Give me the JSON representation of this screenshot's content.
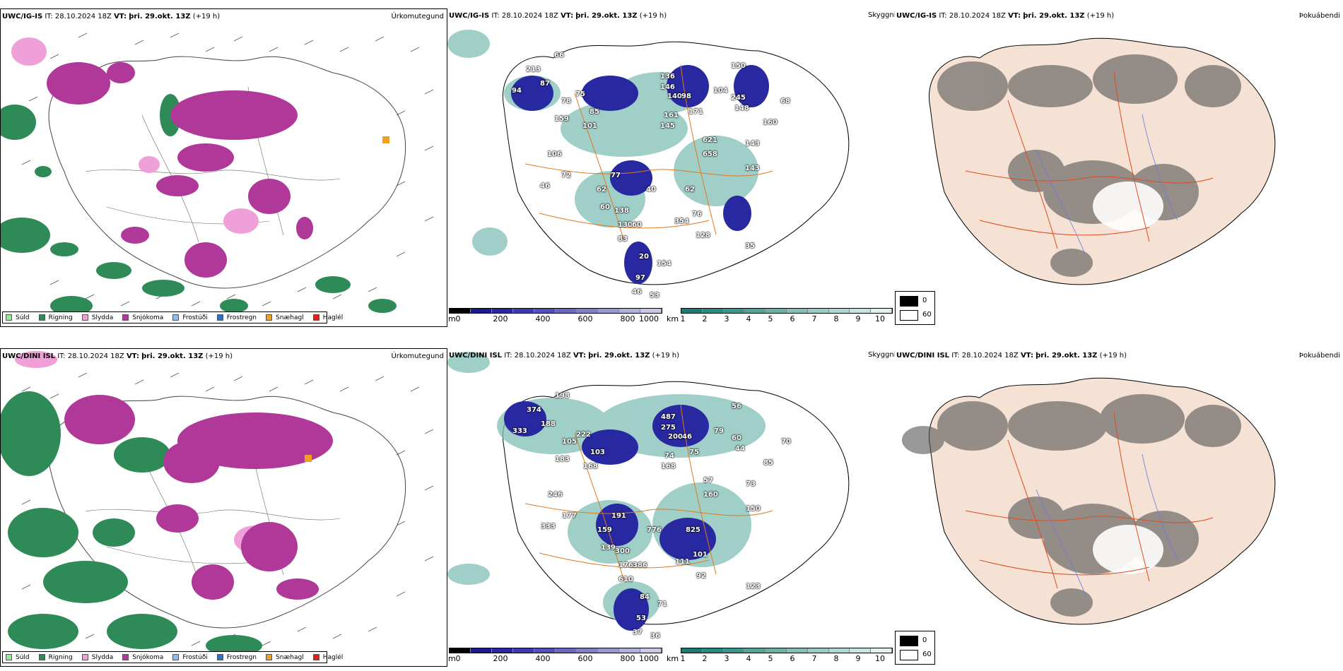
{
  "panels": [
    {
      "row": "top",
      "model": "UWC/IG-IS",
      "it_label": "IT:",
      "it_value": "28.10.2024 18Z",
      "vt_label": "VT:",
      "vt_value": "þri. 29.okt. 13Z",
      "lead": "(+19 h)",
      "precip_title": "Úrkomutegund",
      "sky_title": "Skyggni",
      "cloud_title": "Þokuábendi"
    },
    {
      "row": "bottom",
      "model": "UWC/DINI ISL",
      "it_label": "IT:",
      "it_value": "28.10.2024 18Z",
      "vt_label": "VT:",
      "vt_value": "þri. 29.okt. 13Z",
      "lead": "(+19 h)",
      "precip_title": "Úrkomutegund",
      "sky_title": "Skyggni",
      "cloud_title": "Þokuábendi"
    }
  ],
  "precip_legend": [
    {
      "label": "Súld",
      "color": "#90ee90"
    },
    {
      "label": "Rigning",
      "color": "#2e8b57"
    },
    {
      "label": "Slydda",
      "color": "#f0a0d8"
    },
    {
      "label": "Snjókoma",
      "color": "#b03898"
    },
    {
      "label": "Frostúði",
      "color": "#8cbcf0"
    },
    {
      "label": "Frostregn",
      "color": "#3070c0"
    },
    {
      "label": "Snæhagl",
      "color": "#f0a020"
    },
    {
      "label": "Haglél",
      "color": "#e02020"
    }
  ],
  "height_scale": {
    "unit": "m",
    "ticks": [
      "0",
      "200",
      "400",
      "600",
      "800",
      "1000"
    ],
    "colors": [
      "#000000",
      "#1a1a8a",
      "#2828a0",
      "#3c3cb0",
      "#5050b8",
      "#6868c0",
      "#8080c8",
      "#9898d0",
      "#b0b0d8",
      "#c8c8e4"
    ]
  },
  "vis_scale": {
    "unit": "km",
    "ticks": [
      "1",
      "2",
      "3",
      "4",
      "5",
      "6",
      "7",
      "8",
      "9",
      "10"
    ],
    "colors": [
      "#1e7a72",
      "#2a8a80",
      "#3a968c",
      "#50a49a",
      "#68b2a8",
      "#80c0b6",
      "#98ccc4",
      "#b0d8d2",
      "#c8e4e0",
      "#e0f0ee"
    ]
  },
  "cloud_legend": {
    "labels": [
      "0",
      "60"
    ],
    "colors": [
      "#000000",
      "#ffffff"
    ]
  },
  "ceiling_labels_top": [
    "213",
    "66",
    "94",
    "87",
    "78",
    "75",
    "159",
    "85",
    "101",
    "106",
    "72",
    "46",
    "77",
    "62",
    "60",
    "138",
    "130",
    "40",
    "60",
    "83",
    "62",
    "354",
    "76",
    "128",
    "136",
    "146",
    "140",
    "98",
    "161",
    "145",
    "171",
    "104",
    "150",
    "245",
    "148",
    "68",
    "160",
    "143",
    "621",
    "658",
    "143",
    "35",
    "20",
    "154",
    "97",
    "46",
    "53"
  ],
  "ceiling_labels_bottom": [
    "374",
    "198",
    "333",
    "188",
    "105",
    "222",
    "183",
    "103",
    "168",
    "246",
    "177",
    "333",
    "191",
    "159",
    "139",
    "300",
    "176",
    "776",
    "386",
    "610",
    "825",
    "111",
    "101",
    "92",
    "487",
    "275",
    "200",
    "46",
    "74",
    "168",
    "75",
    "79",
    "56",
    "60",
    "44",
    "70",
    "85",
    "73",
    "57",
    "160",
    "150",
    "123",
    "84",
    "71",
    "53",
    "37",
    "36"
  ]
}
